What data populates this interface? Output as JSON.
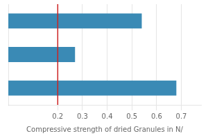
{
  "chart_data": {
    "type": "bar",
    "orientation": "horizontal",
    "categories": [
      null,
      null,
      null
    ],
    "values": [
      0.54,
      0.27,
      0.68
    ],
    "color": "#3a8ab5",
    "xlim": [
      0.0,
      0.78
    ],
    "xticks": [
      0.2,
      0.3,
      0.4,
      0.5,
      0.6,
      0.7
    ],
    "xlabel": "Compressive strength of dried Granules in N/",
    "reference_line": {
      "value": 0.2,
      "color": "#cc2222"
    },
    "grid": true,
    "tick_labels": "x"
  }
}
